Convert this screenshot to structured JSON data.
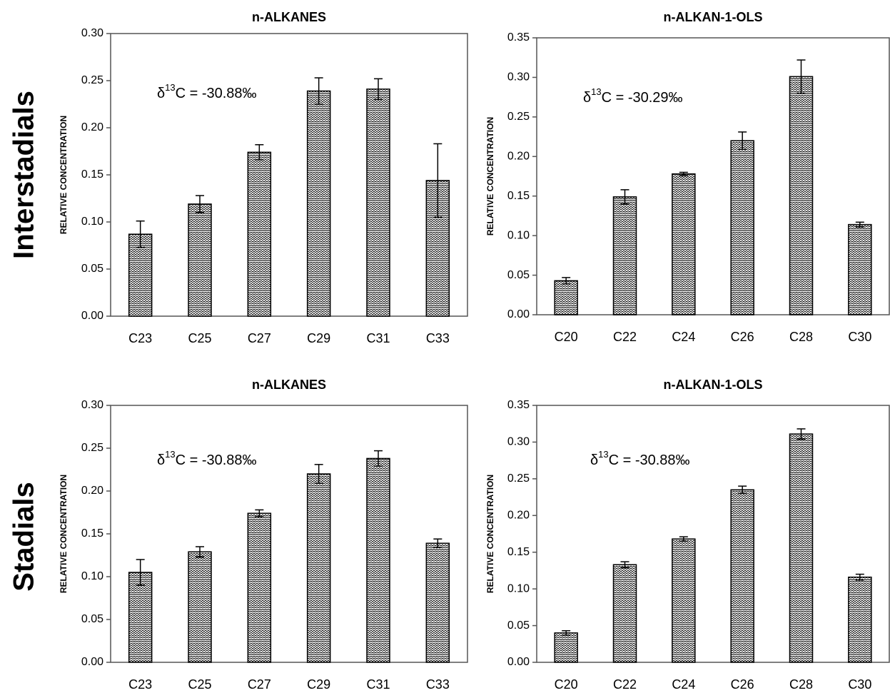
{
  "row_labels": [
    "Interstadials",
    "Stadials"
  ],
  "chart_data": [
    {
      "type": "bar",
      "title": "n-ALKANES",
      "y_label": "RELATIVE CONCENTRATION",
      "annotation": {
        "base": "δ",
        "sup": "13",
        "rest": "C = -30.88‰"
      },
      "categories": [
        "C23",
        "C25",
        "C27",
        "C29",
        "C31",
        "C33"
      ],
      "values": [
        0.087,
        0.119,
        0.174,
        0.239,
        0.241,
        0.144
      ],
      "errors": [
        0.014,
        0.009,
        0.008,
        0.014,
        0.011,
        0.039
      ],
      "ylim": [
        0,
        0.3
      ],
      "yticks": [
        {
          "value": 0,
          "label": "0.00"
        },
        0.05,
        {
          "value": 0.1,
          "label": "0.10"
        },
        0.15,
        {
          "value": 0.2,
          "label": "0.20"
        },
        0.25,
        {
          "value": 0.3,
          "label": "0.30"
        }
      ]
    },
    {
      "type": "bar",
      "title": "n-ALKAN-1-OLS",
      "y_label": "RELATIVE CONCENTRATION",
      "annotation": {
        "base": "δ",
        "sup": "13",
        "rest": "C = -30.29‰"
      },
      "categories": [
        "C20",
        "C22",
        "C24",
        "C26",
        "C28",
        "C30"
      ],
      "values": [
        0.043,
        0.149,
        0.178,
        0.22,
        0.301,
        0.114
      ],
      "errors": [
        0.004,
        0.009,
        0.002,
        0.011,
        0.021,
        0.003
      ],
      "ylim": [
        0,
        0.35
      ],
      "yticks": [
        {
          "value": 0,
          "label": "0.00"
        },
        0.05,
        {
          "value": 0.1,
          "label": "0.10"
        },
        0.15,
        {
          "value": 0.2,
          "label": "0.20"
        },
        0.25,
        {
          "value": 0.3,
          "label": "0.30"
        },
        0.35
      ]
    },
    {
      "type": "bar",
      "title": "n-ALKANES",
      "y_label": "RELATIVE CONCENTRATION",
      "annotation": {
        "base": "δ",
        "sup": "13",
        "rest": "C = -30.88‰"
      },
      "categories": [
        "C23",
        "C25",
        "C27",
        "C29",
        "C31",
        "C33"
      ],
      "values": [
        0.105,
        0.129,
        0.174,
        0.22,
        0.238,
        0.139
      ],
      "errors": [
        0.015,
        0.006,
        0.004,
        0.011,
        0.009,
        0.005
      ],
      "ylim": [
        0,
        0.3
      ],
      "yticks": [
        {
          "value": 0,
          "label": "0.00"
        },
        0.05,
        {
          "value": 0.1,
          "label": "0.10"
        },
        0.15,
        {
          "value": 0.2,
          "label": "0.20"
        },
        0.25,
        {
          "value": 0.3,
          "label": "0.30"
        }
      ]
    },
    {
      "type": "bar",
      "title": "n-ALKAN-1-OLS",
      "y_label": "RELATIVE CONCENTRATION",
      "annotation": {
        "base": "δ",
        "sup": "13",
        "rest": "C = -30.88‰"
      },
      "categories": [
        "C20",
        "C22",
        "C24",
        "C26",
        "C28",
        "C30"
      ],
      "values": [
        0.04,
        0.133,
        0.168,
        0.235,
        0.311,
        0.116
      ],
      "errors": [
        0.003,
        0.004,
        0.003,
        0.005,
        0.007,
        0.004
      ],
      "ylim": [
        0,
        0.35
      ],
      "yticks": [
        {
          "value": 0,
          "label": "0.00"
        },
        0.05,
        {
          "value": 0.1,
          "label": "0.10"
        },
        0.15,
        {
          "value": 0.2,
          "label": "0.20"
        },
        0.25,
        {
          "value": 0.3,
          "label": "0.30"
        },
        0.35
      ]
    }
  ]
}
